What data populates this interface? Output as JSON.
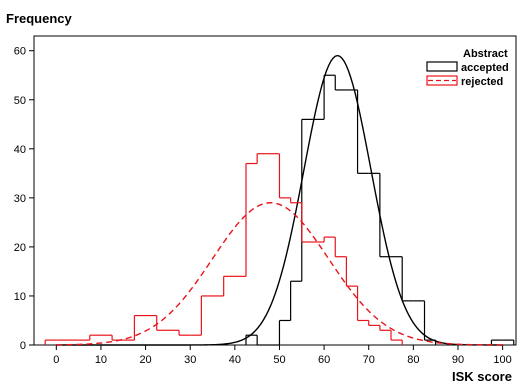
{
  "chart_data": {
    "type": "histogram",
    "ylabel": "Frequency",
    "xlabel": "ISK score",
    "xlim": [
      -5,
      103
    ],
    "ylim": [
      0,
      63
    ],
    "xticks": [
      0,
      10,
      20,
      30,
      40,
      50,
      60,
      70,
      80,
      90,
      100
    ],
    "yticks": [
      0,
      10,
      20,
      30,
      40,
      50,
      60
    ],
    "bin_width": 2.5,
    "legend": {
      "title": "Abstract",
      "position": "top-right"
    },
    "series": [
      {
        "name": "accepted",
        "color": "#000000",
        "bins": [
          {
            "x0": 42.5,
            "x1": 45,
            "count": 2
          },
          {
            "x0": 45,
            "x1": 47.5,
            "count": 0
          },
          {
            "x0": 47.5,
            "x1": 50,
            "count": 0
          },
          {
            "x0": 50,
            "x1": 52.5,
            "count": 5
          },
          {
            "x0": 52.5,
            "x1": 55,
            "count": 13
          },
          {
            "x0": 55,
            "x1": 57.5,
            "count": 46
          },
          {
            "x0": 57.5,
            "x1": 60,
            "count": 46
          },
          {
            "x0": 60,
            "x1": 62.5,
            "count": 55
          },
          {
            "x0": 62.5,
            "x1": 65,
            "count": 52
          },
          {
            "x0": 65,
            "x1": 67.5,
            "count": 52
          },
          {
            "x0": 67.5,
            "x1": 70,
            "count": 35
          },
          {
            "x0": 70,
            "x1": 72.5,
            "count": 35
          },
          {
            "x0": 72.5,
            "x1": 75,
            "count": 18
          },
          {
            "x0": 75,
            "x1": 77.5,
            "count": 18
          },
          {
            "x0": 77.5,
            "x1": 80,
            "count": 9
          },
          {
            "x0": 80,
            "x1": 82.5,
            "count": 9
          },
          {
            "x0": 82.5,
            "x1": 85,
            "count": 1
          },
          {
            "x0": 97.5,
            "x1": 100,
            "count": 1
          },
          {
            "x0": 100,
            "x1": 102.5,
            "count": 1
          }
        ],
        "fit": {
          "kind": "normal",
          "mean": 63,
          "sd": 7.5,
          "peak": 59,
          "line": "solid"
        }
      },
      {
        "name": "rejected",
        "color": "#e8141b",
        "bins": [
          {
            "x0": -2.5,
            "x1": 0,
            "count": 1
          },
          {
            "x0": 0,
            "x1": 2.5,
            "count": 1
          },
          {
            "x0": 2.5,
            "x1": 5,
            "count": 1
          },
          {
            "x0": 5,
            "x1": 7.5,
            "count": 1
          },
          {
            "x0": 7.5,
            "x1": 10,
            "count": 2
          },
          {
            "x0": 10,
            "x1": 12.5,
            "count": 2
          },
          {
            "x0": 12.5,
            "x1": 15,
            "count": 1
          },
          {
            "x0": 15,
            "x1": 17.5,
            "count": 1
          },
          {
            "x0": 17.5,
            "x1": 20,
            "count": 6
          },
          {
            "x0": 20,
            "x1": 22.5,
            "count": 6
          },
          {
            "x0": 22.5,
            "x1": 25,
            "count": 3
          },
          {
            "x0": 25,
            "x1": 27.5,
            "count": 3
          },
          {
            "x0": 27.5,
            "x1": 30,
            "count": 2
          },
          {
            "x0": 30,
            "x1": 32.5,
            "count": 2
          },
          {
            "x0": 32.5,
            "x1": 35,
            "count": 10
          },
          {
            "x0": 35,
            "x1": 37.5,
            "count": 10
          },
          {
            "x0": 37.5,
            "x1": 40,
            "count": 14
          },
          {
            "x0": 40,
            "x1": 42.5,
            "count": 14
          },
          {
            "x0": 42.5,
            "x1": 45,
            "count": 37
          },
          {
            "x0": 45,
            "x1": 47.5,
            "count": 39
          },
          {
            "x0": 47.5,
            "x1": 50,
            "count": 39
          },
          {
            "x0": 50,
            "x1": 52.5,
            "count": 30
          },
          {
            "x0": 52.5,
            "x1": 55,
            "count": 29
          },
          {
            "x0": 55,
            "x1": 57.5,
            "count": 21
          },
          {
            "x0": 57.5,
            "x1": 60,
            "count": 21
          },
          {
            "x0": 60,
            "x1": 62.5,
            "count": 22
          },
          {
            "x0": 62.5,
            "x1": 65,
            "count": 18
          },
          {
            "x0": 65,
            "x1": 67.5,
            "count": 12
          },
          {
            "x0": 67.5,
            "x1": 70,
            "count": 5
          },
          {
            "x0": 70,
            "x1": 72.5,
            "count": 4
          },
          {
            "x0": 72.5,
            "x1": 75,
            "count": 3
          },
          {
            "x0": 75,
            "x1": 77.5,
            "count": 1
          }
        ],
        "fit": {
          "kind": "normal",
          "mean": 48,
          "sd": 13,
          "peak": 29,
          "line": "dashed"
        }
      }
    ]
  }
}
